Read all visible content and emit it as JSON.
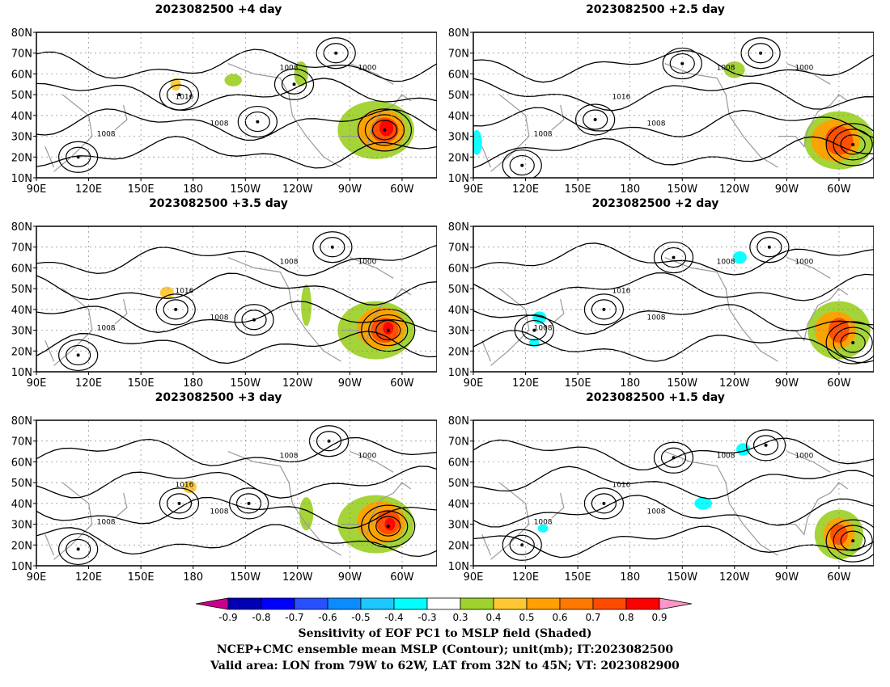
{
  "panels": [
    {
      "title": "2023082500  +4 day"
    },
    {
      "title": "2023082500  +2.5 day"
    },
    {
      "title": "2023082500  +3.5 day"
    },
    {
      "title": "2023082500  +2 day"
    },
    {
      "title": "2023082500  +3 day"
    },
    {
      "title": "2023082500  +1.5 day"
    }
  ],
  "axes": {
    "lat_labels": [
      "80N",
      "70N",
      "60N",
      "50N",
      "40N",
      "30N",
      "20N",
      "10N"
    ],
    "lon_labels": [
      "90E",
      "120E",
      "150E",
      "180",
      "150W",
      "120W",
      "90W",
      "60W"
    ],
    "lat_range": [
      10,
      80
    ],
    "lon_range_deg_east": [
      90,
      320
    ]
  },
  "colorbar": {
    "tick_labels": [
      "-0.9",
      "-0.8",
      "-0.7",
      "-0.6",
      "-0.5",
      "-0.4",
      "-0.3",
      "0.3",
      "0.4",
      "0.5",
      "0.6",
      "0.7",
      "0.8",
      "0.9"
    ],
    "colors": [
      "#c8008c",
      "#0000b4",
      "#0000ff",
      "#2850ff",
      "#0a8cff",
      "#1ec8ff",
      "#00ffff",
      "#ffffff",
      "#a0d22d",
      "#ffc832",
      "#ffa000",
      "#ff7800",
      "#ff4b00",
      "#ff0000",
      "#ff96c8"
    ]
  },
  "contour_labels": [
    "1000",
    "1008",
    "1016"
  ],
  "footer": {
    "line1": "Sensitivity of EOF PC1 to MSLP field (Shaded)",
    "line2": "NCEP+CMC ensemble mean MSLP (Contour); unit(mb); IT:2023082500",
    "line3": "Valid area: LON from 79W to 62W, LAT from 32N to 45N; VT: 2023082900"
  }
}
